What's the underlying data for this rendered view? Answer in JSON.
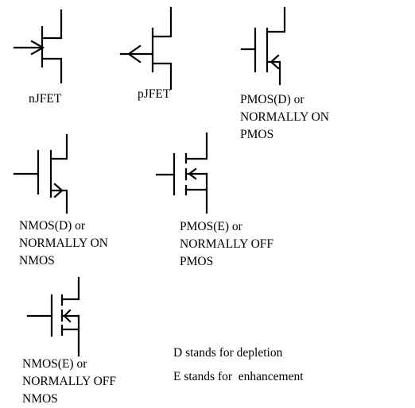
{
  "colors": {
    "stroke": "#000000",
    "background": "#ffffff",
    "text": "#000000"
  },
  "symbols": [
    {
      "id": "njfet",
      "label_lines": [
        "nJFET"
      ]
    },
    {
      "id": "pjfet",
      "label_lines": [
        "pJFET"
      ]
    },
    {
      "id": "pmos-d",
      "label_lines": [
        "PMOS(D) or",
        "NORMALLY ON",
        "PMOS"
      ]
    },
    {
      "id": "nmos-d",
      "label_lines": [
        "NMOS(D) or",
        "NORMALLY ON",
        "NMOS"
      ]
    },
    {
      "id": "pmos-e",
      "label_lines": [
        "PMOS(E) or",
        "NORMALLY OFF",
        "PMOS"
      ]
    },
    {
      "id": "nmos-e",
      "label_lines": [
        "NMOS(E) or",
        "NORMALLY OFF",
        "NMOS"
      ]
    }
  ],
  "legend": {
    "depletion": "D stands for depletion",
    "enhancement": "E stands for  enhancement"
  }
}
